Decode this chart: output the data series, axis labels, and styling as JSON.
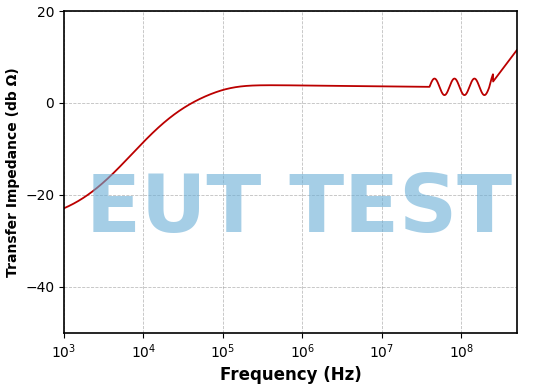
{
  "title": "",
  "xlabel": "Frequency (Hz)",
  "ylabel": "Transfer Impedance (db Ω)",
  "xlim": [
    1000,
    500000000
  ],
  "ylim": [
    -50,
    20
  ],
  "yticks": [
    -40,
    -20,
    0,
    20
  ],
  "line_color": "#bb0000",
  "line_width": 1.3,
  "grid_color": "#000000",
  "grid_alpha": 0.25,
  "watermark_text": "EUT TEST",
  "watermark_color": "#6aaed6",
  "watermark_alpha": 0.6,
  "watermark_fontsize": 58,
  "background_color": "#ffffff",
  "xlabel_fontsize": 12,
  "ylabel_fontsize": 10,
  "tick_fontsize": 10
}
